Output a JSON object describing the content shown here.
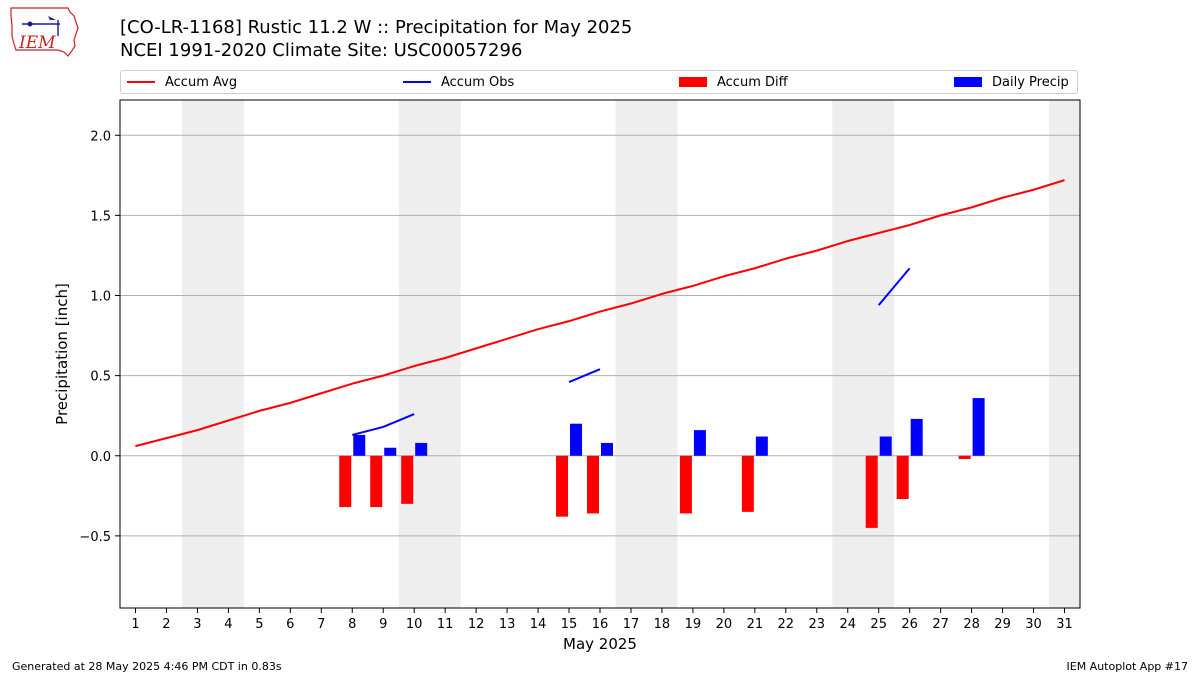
{
  "titles": {
    "line1": "[CO-LR-1168] Rustic 11.2 W :: Precipitation for May 2025",
    "line2": "NCEI 1991-2020 Climate Site: USC00057296"
  },
  "logo": {
    "text": "IEM",
    "icon": "iowa-state-outline-icon",
    "color": "#cc2222"
  },
  "footer": {
    "left": "Generated at 28 May 2025 4:46 PM CDT in 0.83s",
    "right": "IEM Autoplot App #17"
  },
  "chart_data": {
    "type": "bar",
    "xlabel": "May 2025",
    "ylabel": "Precipitation [inch]",
    "xlim": [
      0.5,
      31.5
    ],
    "ylim": [
      -0.95,
      2.22
    ],
    "x_ticks": [
      1,
      2,
      3,
      4,
      5,
      6,
      7,
      8,
      9,
      10,
      11,
      12,
      13,
      14,
      15,
      16,
      17,
      18,
      19,
      20,
      21,
      22,
      23,
      24,
      25,
      26,
      27,
      28,
      29,
      30,
      31
    ],
    "y_ticks": [
      -0.5,
      0.0,
      0.5,
      1.0,
      1.5,
      2.0
    ],
    "y_tick_labels": [
      "−0.5",
      "0.0",
      "0.5",
      "1.0",
      "1.5",
      "2.0"
    ],
    "grid": "horizontal",
    "legend_position": "top",
    "weekend_bands": [
      [
        2.5,
        4.5
      ],
      [
        9.5,
        11.5
      ],
      [
        16.5,
        18.5
      ],
      [
        23.5,
        25.5
      ],
      [
        30.5,
        31.5
      ]
    ],
    "series": [
      {
        "name": "Accum Avg",
        "kind": "line",
        "color": "#ff0000",
        "x": [
          1,
          2,
          3,
          4,
          5,
          6,
          7,
          8,
          9,
          10,
          11,
          12,
          13,
          14,
          15,
          16,
          17,
          18,
          19,
          20,
          21,
          22,
          23,
          24,
          25,
          26,
          27,
          28,
          29,
          30,
          31
        ],
        "values": [
          0.06,
          0.11,
          0.16,
          0.22,
          0.28,
          0.33,
          0.39,
          0.45,
          0.5,
          0.56,
          0.61,
          0.67,
          0.73,
          0.79,
          0.84,
          0.9,
          0.95,
          1.01,
          1.06,
          1.12,
          1.17,
          1.23,
          1.28,
          1.34,
          1.39,
          1.44,
          1.5,
          1.55,
          1.61,
          1.66,
          1.72
        ]
      },
      {
        "name": "Accum Obs",
        "kind": "line",
        "color": "#0000ff",
        "segments": [
          {
            "x": [
              8,
              9,
              10
            ],
            "values": [
              0.13,
              0.18,
              0.26
            ]
          },
          {
            "x": [
              15,
              16
            ],
            "values": [
              0.46,
              0.54
            ]
          },
          {
            "x": [
              25,
              26
            ],
            "values": [
              0.94,
              1.17
            ]
          }
        ]
      },
      {
        "name": "Accum Diff",
        "kind": "bar",
        "color": "#ff0000",
        "x": [
          8,
          9,
          10,
          15,
          16,
          19,
          21,
          25,
          26,
          28
        ],
        "values": [
          -0.32,
          -0.32,
          -0.3,
          -0.38,
          -0.36,
          -0.36,
          -0.35,
          -0.45,
          -0.27,
          -0.02
        ]
      },
      {
        "name": "Daily Precip",
        "kind": "bar",
        "color": "#0000ff",
        "x": [
          8,
          9,
          10,
          15,
          16,
          19,
          21,
          25,
          26,
          28
        ],
        "values": [
          0.13,
          0.05,
          0.08,
          0.2,
          0.08,
          0.16,
          0.12,
          0.12,
          0.23,
          0.36
        ]
      }
    ]
  }
}
